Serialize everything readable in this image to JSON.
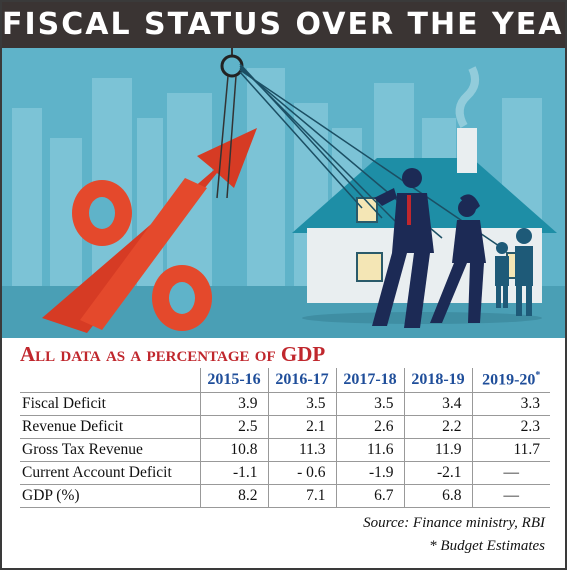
{
  "title": "FISCAL STATUS OVER THE YEARS",
  "subtitle": {
    "lead": "A",
    "rest": "ll data as a percentage of",
    "tail": "GDP"
  },
  "illustration_icons": [
    "percent-sign-icon",
    "upward-arrow-icon",
    "house-icon",
    "businessman-pulling-icon",
    "businesswoman-pulling-icon",
    "family-icon",
    "city-skyline-icon"
  ],
  "colors": {
    "title_bg": "#3a3433",
    "subtitle": "#c0272d",
    "year_header": "#1f4e9a",
    "sky": "#5fb3c9",
    "house": "#1e8ea6",
    "percent": "#e4492c"
  },
  "chart_data": {
    "type": "table",
    "title": "FISCAL STATUS OVER THE YEARS",
    "subtitle": "All data as a percentage of GDP",
    "columns": [
      "2015-16",
      "2016-17",
      "2017-18",
      "2018-19",
      "2019-20"
    ],
    "columns_note_mark": "*",
    "rows": [
      {
        "label": "Fiscal Deficit",
        "values": [
          "3.9",
          "3.5",
          "3.5",
          "3.4",
          "3.3"
        ]
      },
      {
        "label": "Revenue Deficit",
        "values": [
          "2.5",
          "2.1",
          "2.6",
          "2.2",
          "2.3"
        ]
      },
      {
        "label": "Gross Tax Revenue",
        "values": [
          "10.8",
          "11.3",
          "11.6",
          "11.9",
          "11.7"
        ]
      },
      {
        "label": "Current Account Deficit",
        "values": [
          "-1.1",
          "- 0.6",
          "-1.9",
          "-2.1",
          "—"
        ]
      },
      {
        "label": "GDP (%)",
        "values": [
          "8.2",
          "7.1",
          "6.7",
          "6.8",
          "—"
        ]
      }
    ],
    "source": "Source: Finance ministry, RBI",
    "footnote": "* Budget Estimates"
  }
}
